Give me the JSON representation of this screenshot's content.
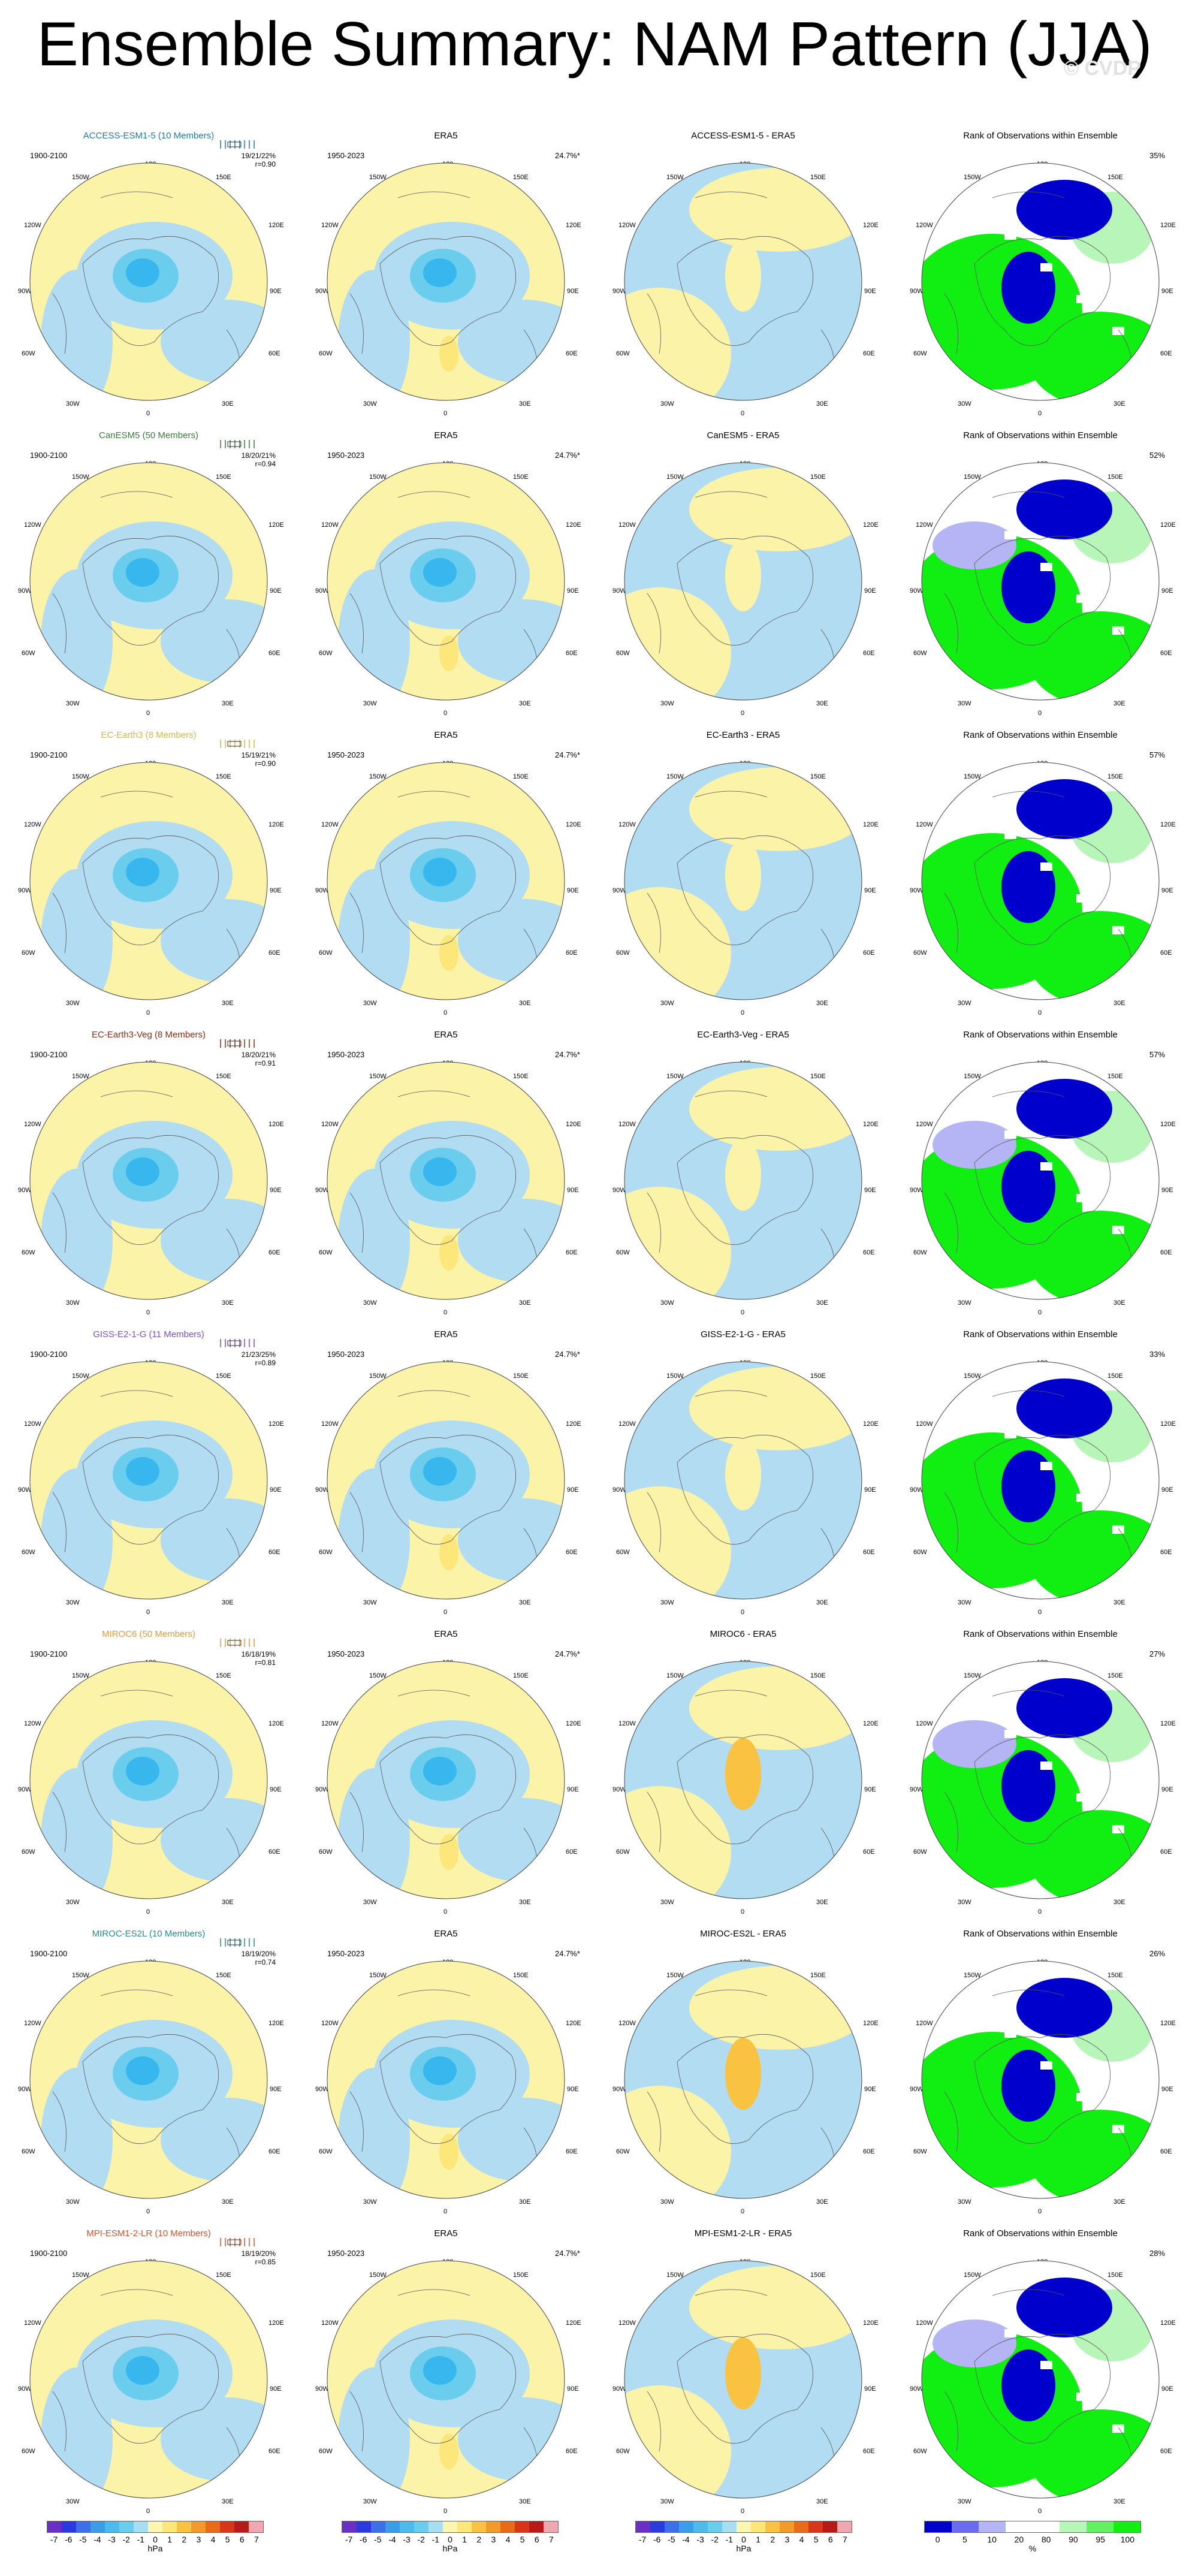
{
  "title": "Ensemble Summary: NAM Pattern (JJA)",
  "watermark": "© CVDP",
  "obs_period": "1950-2023",
  "model_period": "1900-2100",
  "obs_pct": "24.7%*",
  "rank_title": "Rank of Observations within Ensemble",
  "lon_labels": {
    "top": "180",
    "tl": "150W",
    "tr": "150E",
    "ul": "120W",
    "ur": "120E",
    "l": "90W",
    "r": "90E",
    "ll": "60W",
    "lr": "60E",
    "bl": "30W",
    "br": "30E",
    "bottom": "0"
  },
  "rows": [
    {
      "model": "ACCESS-ESM1-5 (10 Members)",
      "diff": "ACCESS-ESM1-5 - ERA5",
      "stats": "19/21/22%",
      "r": "r=0.90",
      "rank_pct": "35%",
      "color": "#1f77b4"
    },
    {
      "model": "CanESM5 (50 Members)",
      "diff": "CanESM5 - ERA5",
      "stats": "18/20/21%",
      "r": "r=0.94",
      "rank_pct": "52%",
      "color": "#3a7d3a"
    },
    {
      "model": "EC-Earth3 (8 Members)",
      "diff": "EC-Earth3 - ERA5",
      "stats": "15/19/21%",
      "r": "r=0.90",
      "rank_pct": "57%",
      "color": "#d4b84a"
    },
    {
      "model": "EC-Earth3-Veg (8 Members)",
      "diff": "EC-Earth3-Veg - ERA5",
      "stats": "18/20/21%",
      "r": "r=0.91",
      "rank_pct": "57%",
      "color": "#8b2d0e"
    },
    {
      "model": "GISS-E2-1-G (11 Members)",
      "diff": "GISS-E2-1-G - ERA5",
      "stats": "21/23/25%",
      "r": "r=0.89",
      "rank_pct": "33%",
      "color": "#7b4fc1"
    },
    {
      "model": "MIROC6 (50 Members)",
      "diff": "MIROC6 - ERA5",
      "stats": "16/18/19%",
      "r": "r=0.81",
      "rank_pct": "27%",
      "color": "#e09a40"
    },
    {
      "model": "MIROC-ES2L (10 Members)",
      "diff": "MIROC-ES2L - ERA5",
      "stats": "18/19/20%",
      "r": "r=0.74",
      "rank_pct": "26%",
      "color": "#2a8b8b"
    },
    {
      "model": "MPI-ESM1-2-LR (10 Members)",
      "diff": "MPI-ESM1-2-LR - ERA5",
      "stats": "18/19/20%",
      "r": "r=0.85",
      "rank_pct": "28%",
      "color": "#d1542e"
    }
  ],
  "colorbar": {
    "colors": [
      "#6a2fc4",
      "#2a39e0",
      "#3d6fe8",
      "#3b9de8",
      "#4cbbec",
      "#6bcdee",
      "#a9ddf0",
      "#fdf6b0",
      "#fde67a",
      "#f9c341",
      "#f39b2a",
      "#ea6a1b",
      "#d8351a",
      "#b81a1a",
      "#f0a8b0"
    ],
    "ticks": [
      "-7",
      "-6",
      "-5",
      "-4",
      "-3",
      "-2",
      "-1",
      "0",
      "1",
      "2",
      "3",
      "4",
      "5",
      "6",
      "7"
    ],
    "unit": "hPa"
  },
  "rank_colorbar": {
    "colors": [
      "#0000cc",
      "#6b6bef",
      "#b5b5f5",
      "#ffffff",
      "#ffffff",
      "#b8f5b8",
      "#63f063",
      "#11ee11"
    ],
    "ticks": [
      "0",
      "5",
      "10",
      "20",
      "80",
      "90",
      "95",
      "100"
    ],
    "unit": "%"
  },
  "colors": {
    "positive": "#fbf3a8",
    "negative": "#b2dcf2",
    "strong_neg": "#38b6ee",
    "rank_high": "#11ee11",
    "rank_low": "#0000cc"
  }
}
